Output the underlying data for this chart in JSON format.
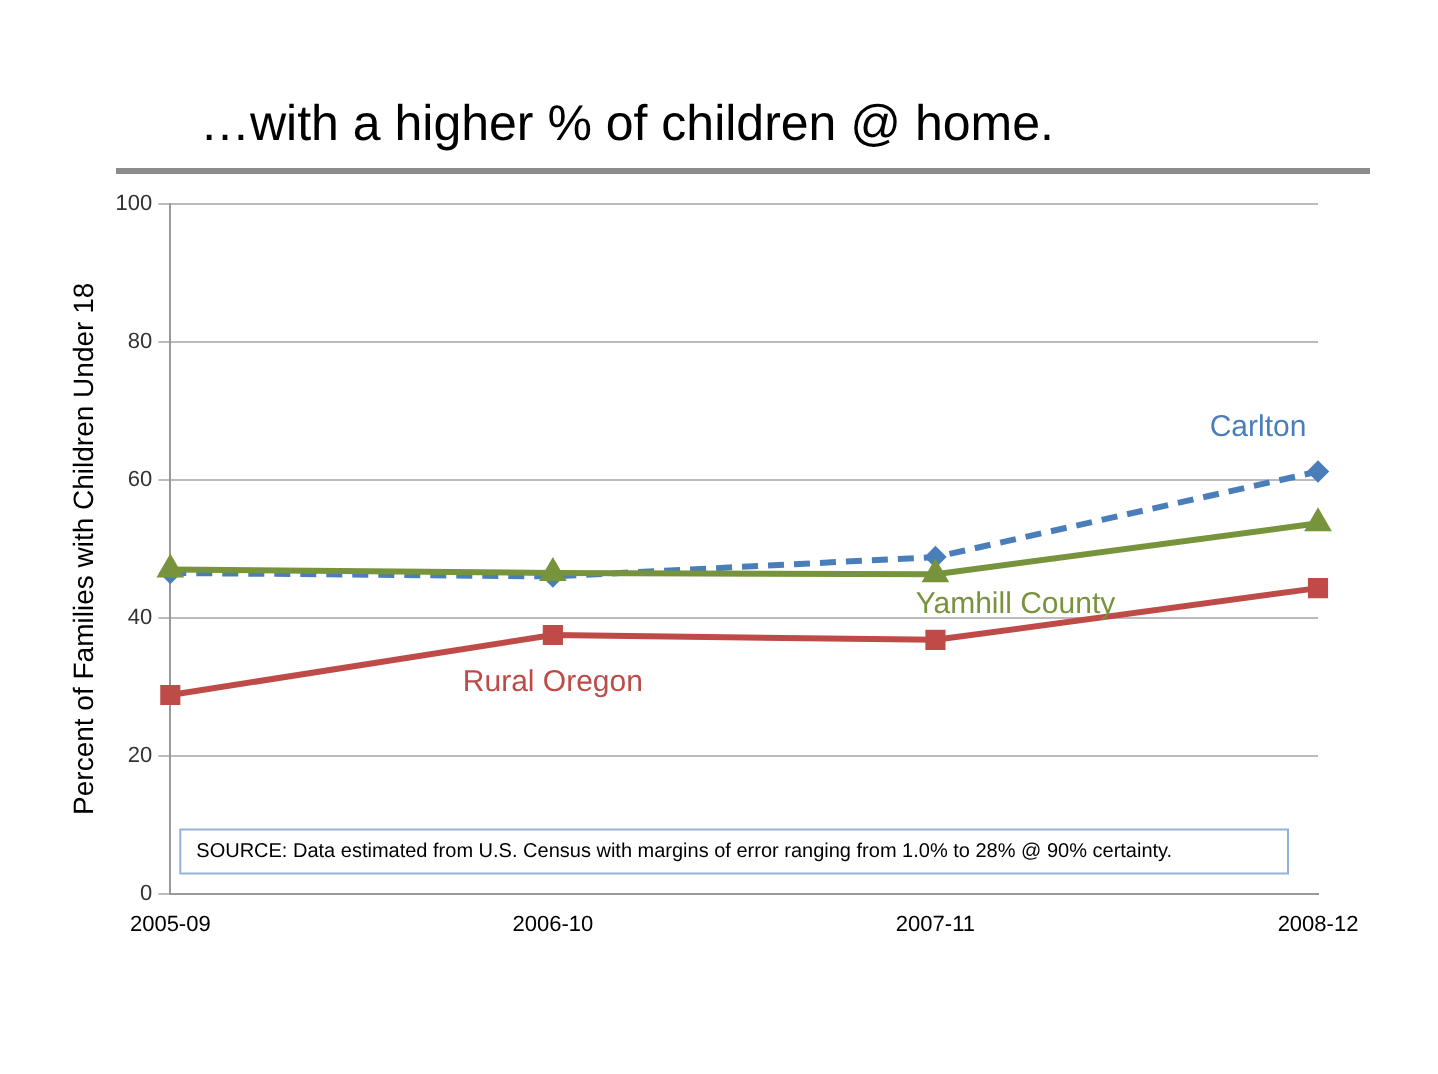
{
  "chart_data": {
    "type": "line",
    "title": "…with a higher % of children @ home.",
    "ylabel": "Percent of Families with Children Under 18",
    "categories": [
      "2005-09",
      "2006-10",
      "2007-11",
      "2008-12"
    ],
    "series": [
      {
        "name": "Carlton",
        "color": "#4a7ebb",
        "values": [
          46.5,
          46,
          48.8,
          61.2
        ],
        "marker": "diamond",
        "line_style": "dashed"
      },
      {
        "name": "Yamhill County",
        "color": "#77933c",
        "values": [
          47,
          46.5,
          46.3,
          53.7
        ],
        "marker": "triangle",
        "line_style": "solid"
      },
      {
        "name": "Rural Oregon",
        "color": "#be4b48",
        "values": [
          28.8,
          37.5,
          36.8,
          44.3
        ],
        "marker": "square",
        "line_style": "solid"
      }
    ],
    "ylim": [
      0,
      100
    ],
    "yticks": [
      0,
      20,
      40,
      60,
      80,
      100
    ],
    "grid": "y",
    "legend": false,
    "annotations": [
      "SOURCE: Data estimated from U.S. Census with margins of error ranging from 1.0% to 28% @ 90% certainty."
    ]
  }
}
